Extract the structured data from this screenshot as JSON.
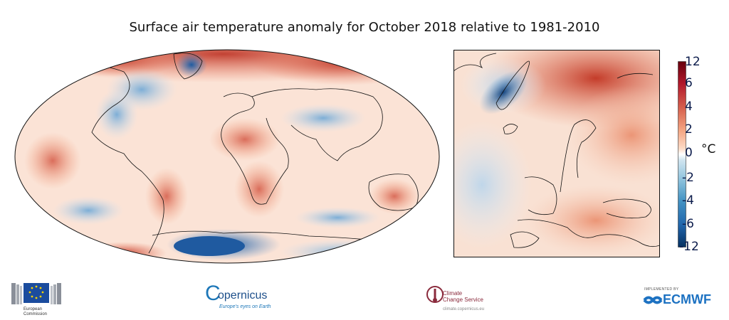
{
  "title": "Surface air temperature anomaly for October 2018 relative to 1981-2010",
  "colorbar": {
    "unit": "°C",
    "ticks": [
      "12",
      "6",
      "4",
      "2",
      "0",
      "-2",
      "-4",
      "-6",
      "-12"
    ],
    "colors": [
      "#67000d",
      "#b2182b",
      "#d6604d",
      "#f4a582",
      "#fddbc7",
      "#ffffff",
      "#d1e5f0",
      "#92c5de",
      "#4393c3",
      "#2166ac",
      "#053061"
    ]
  },
  "logos": {
    "ec": {
      "line1": "European",
      "line2": "Commission"
    },
    "copernicus": {
      "name": "opernicus",
      "initial": "C",
      "tagline": "Europe's eyes on Earth"
    },
    "c3s": {
      "line1": "Climate",
      "line2": "Change Service",
      "url": "climate.copernicus.eu"
    },
    "ecmwf": {
      "implemented": "IMPLEMENTED BY",
      "name": "ECMWF"
    }
  }
}
